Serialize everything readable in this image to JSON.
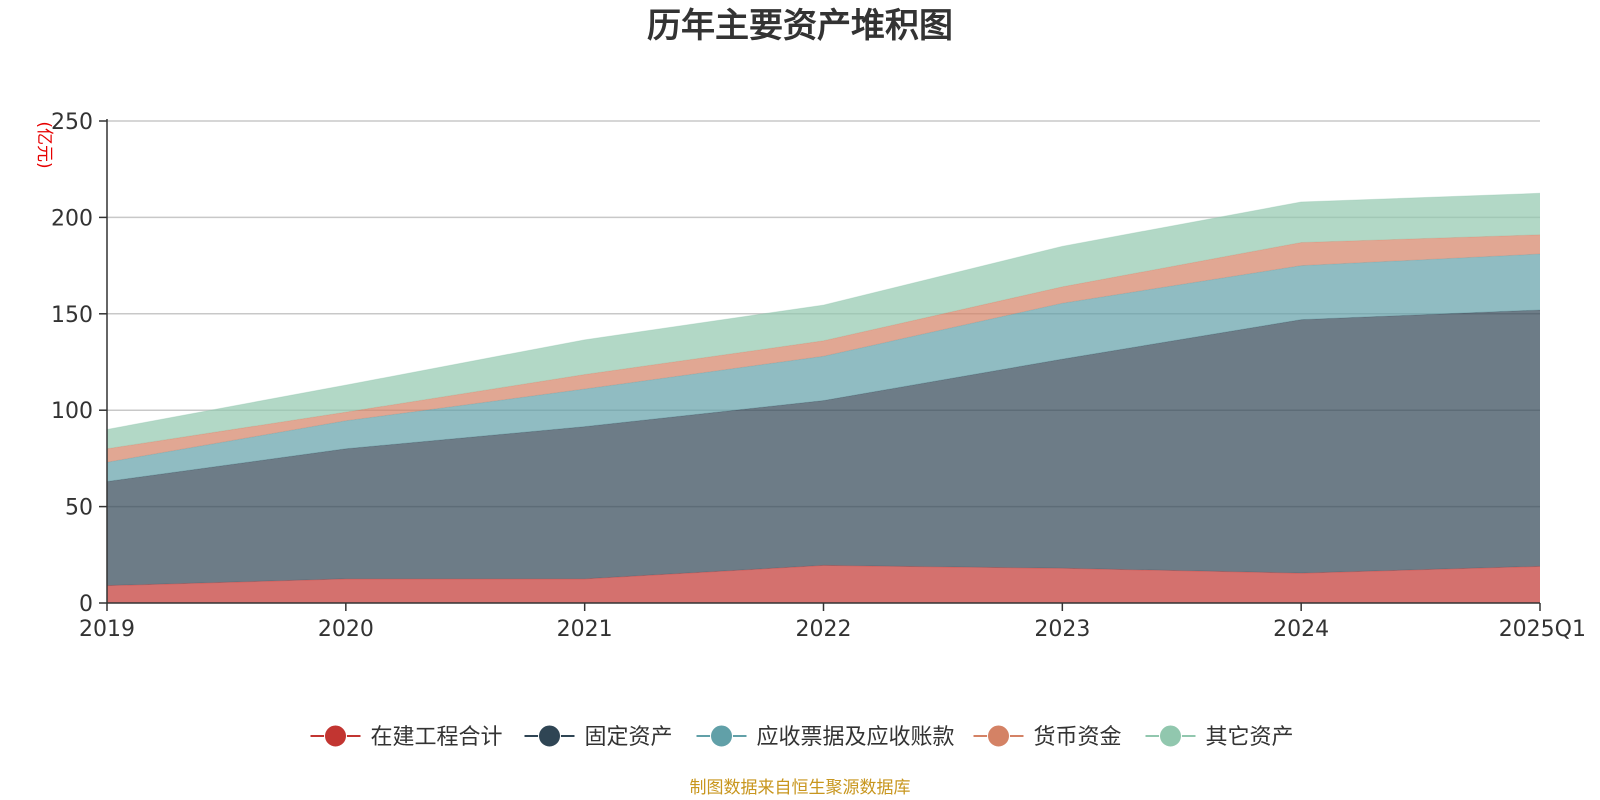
{
  "chart_data": {
    "type": "area",
    "stacked": true,
    "title": "历年主要资产堆积图",
    "unit_label": "(亿元)",
    "xlabel": "",
    "ylabel": "(亿元)",
    "ylim": [
      0,
      250
    ],
    "yticks": [
      0,
      50,
      100,
      150,
      200,
      250
    ],
    "grid": true,
    "legend_position": "bottom",
    "categories": [
      "2019",
      "2020",
      "2021",
      "2022",
      "2023",
      "2024",
      "2025Q1"
    ],
    "series": [
      {
        "name": "在建工程合计",
        "color": "#c23531",
        "values": [
          9,
          12.5,
          12.5,
          19.5,
          18,
          15.5,
          19
        ]
      },
      {
        "name": "固定资产",
        "color": "#2f4554",
        "values": [
          54,
          67.5,
          79,
          85.5,
          108.5,
          131.5,
          133
        ]
      },
      {
        "name": "应收票据及应收账款",
        "color": "#61a0a8",
        "values": [
          10,
          14.5,
          19.5,
          23,
          29,
          28,
          29
        ]
      },
      {
        "name": "货币资金",
        "color": "#d48265",
        "values": [
          7,
          4.5,
          7.5,
          8,
          8.5,
          12,
          10
        ]
      },
      {
        "name": "其它资产",
        "color": "#91c7ae",
        "values": [
          10,
          14,
          18,
          18.5,
          21,
          21,
          21.5
        ]
      }
    ],
    "source": "制图数据来自恒生聚源数据库"
  }
}
